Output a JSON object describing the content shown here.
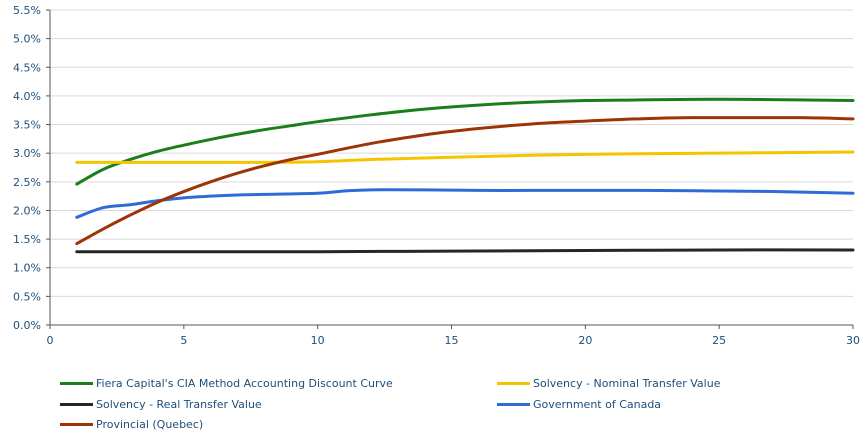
{
  "chart_data": {
    "type": "line",
    "xlim": [
      0,
      30
    ],
    "ylim": [
      0,
      5.5
    ],
    "x_ticks": [
      "0",
      "5",
      "10",
      "15",
      "20",
      "25",
      "30"
    ],
    "y_ticks": [
      "0.0%",
      "0.5%",
      "1.0%",
      "1.5%",
      "2.0%",
      "2.5%",
      "3.0%",
      "3.5%",
      "4.0%",
      "4.5%",
      "5.0%",
      "5.5%"
    ],
    "grid": "horizontal",
    "legend_position": "bottom",
    "series": [
      {
        "name": "Fiera Capital's CIA Method Accounting Discount Curve",
        "color": "#1a7f1a",
        "x": [
          1,
          2,
          3,
          4,
          5,
          6,
          7,
          8,
          9,
          10,
          12,
          14,
          16,
          18,
          20,
          22,
          24,
          26,
          28,
          30
        ],
        "y": [
          2.46,
          2.72,
          2.89,
          3.03,
          3.14,
          3.24,
          3.33,
          3.41,
          3.48,
          3.55,
          3.67,
          3.77,
          3.84,
          3.89,
          3.92,
          3.93,
          3.94,
          3.94,
          3.93,
          3.92
        ]
      },
      {
        "name": "Solvency - Nominal Transfer Value",
        "color": "#f5c400",
        "x": [
          1,
          2,
          4,
          6,
          8,
          10,
          12,
          15,
          20,
          25,
          30
        ],
        "y": [
          2.84,
          2.84,
          2.84,
          2.84,
          2.84,
          2.85,
          2.89,
          2.93,
          2.98,
          3.0,
          3.02
        ]
      },
      {
        "name": "Solvency - Real Transfer Value",
        "color": "#262626",
        "x": [
          1,
          5,
          10,
          15,
          20,
          25,
          30
        ],
        "y": [
          1.28,
          1.28,
          1.28,
          1.29,
          1.3,
          1.31,
          1.31
        ]
      },
      {
        "name": "Government of Canada",
        "color": "#2f6bd6",
        "x": [
          1,
          2,
          3,
          4,
          5,
          6,
          7,
          8,
          10,
          11,
          12,
          14,
          16,
          18,
          20,
          22,
          25,
          27,
          30
        ],
        "y": [
          1.88,
          2.05,
          2.1,
          2.17,
          2.22,
          2.25,
          2.27,
          2.28,
          2.3,
          2.34,
          2.36,
          2.36,
          2.35,
          2.35,
          2.35,
          2.35,
          2.34,
          2.33,
          2.3
        ]
      },
      {
        "name": "Provincial (Quebec)",
        "color": "#9c3506",
        "x": [
          1,
          2,
          3,
          4,
          5,
          6,
          7,
          8,
          9,
          10,
          12,
          14,
          16,
          18,
          20,
          22,
          24,
          26,
          28,
          30
        ],
        "y": [
          1.42,
          1.68,
          1.92,
          2.14,
          2.33,
          2.5,
          2.65,
          2.78,
          2.89,
          2.98,
          3.17,
          3.32,
          3.43,
          3.51,
          3.56,
          3.6,
          3.62,
          3.62,
          3.62,
          3.6
        ]
      }
    ]
  }
}
